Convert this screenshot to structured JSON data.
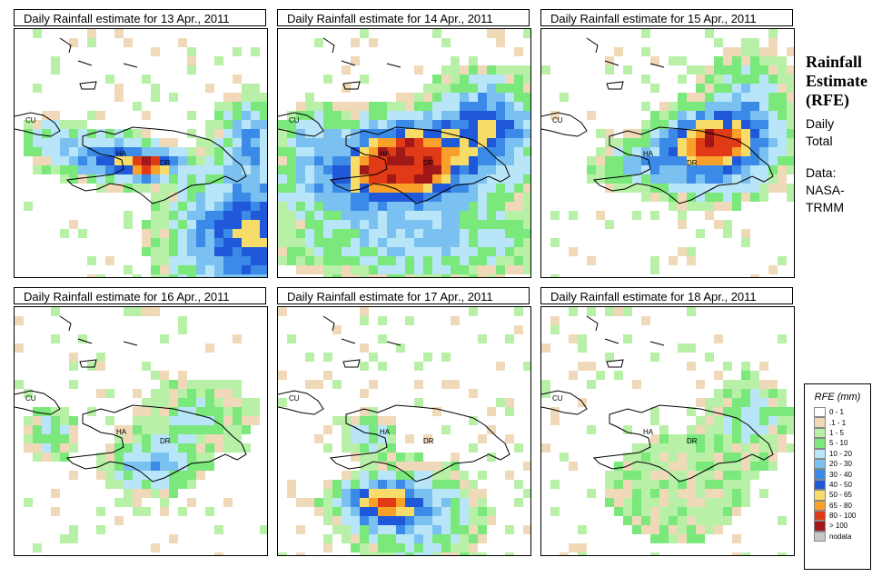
{
  "panels": [
    {
      "title": "Daily Rainfall estimate for  13 Apr., 2011",
      "day": 13
    },
    {
      "title": "Daily Rainfall estimate for  14 Apr., 2011",
      "day": 14
    },
    {
      "title": "Daily Rainfall estimate for  15 Apr., 2011",
      "day": 15
    },
    {
      "title": "Daily Rainfall estimate for  16 Apr., 2011",
      "day": 16
    },
    {
      "title": "Daily Rainfall estimate for  17 Apr., 2011",
      "day": 17
    },
    {
      "title": "Daily Rainfall estimate for  18 Apr., 2011",
      "day": 18
    }
  ],
  "map_labels": {
    "cuba": "CU",
    "haiti": "HA",
    "dominican_republic": "DR"
  },
  "sidebar": {
    "title_line1": "Rainfall",
    "title_line2": "Estimate",
    "title_line3": "(RFE)",
    "line1": "Daily",
    "line2": "Total",
    "line3": "Data:",
    "line4": "NASA-",
    "line5": "TRMM"
  },
  "legend": {
    "title": "RFE (mm)",
    "items": [
      {
        "label": "0 - 1",
        "color": "#ffffff"
      },
      {
        "label": ".1 - 1",
        "color": "#f0d9b8"
      },
      {
        "label": "1 - 5",
        "color": "#b8f0a8"
      },
      {
        "label": "5 - 10",
        "color": "#7ae87a"
      },
      {
        "label": "10 - 20",
        "color": "#b8e6f8"
      },
      {
        "label": "20 - 30",
        "color": "#7ac0f0"
      },
      {
        "label": "30 - 40",
        "color": "#3c8ae8"
      },
      {
        "label": "40 - 50",
        "color": "#1f58d8"
      },
      {
        "label": "50 - 65",
        "color": "#f8dc6a"
      },
      {
        "label": "65 - 80",
        "color": "#f8a02a"
      },
      {
        "label": "80 - 100",
        "color": "#e03a16"
      },
      {
        "label": "> 100",
        "color": "#a01818"
      },
      {
        "label": "nodata",
        "color": "#c8c8c8"
      }
    ]
  }
}
